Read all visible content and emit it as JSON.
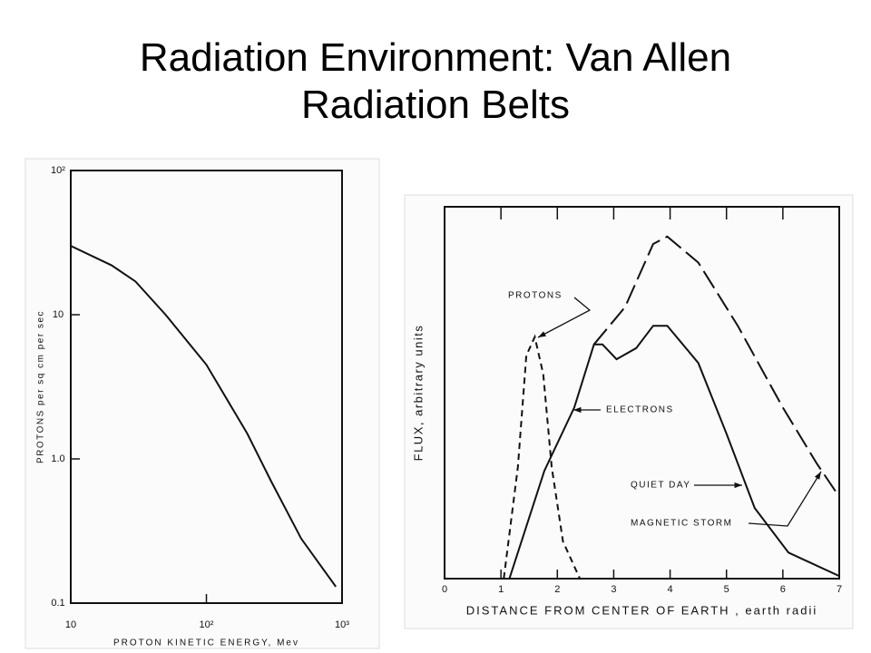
{
  "slide": {
    "title": "Radiation Environment: Van Allen Radiation Belts"
  },
  "chart_data": [
    {
      "type": "line",
      "xlabel": "PROTON KINETIC ENERGY, Mev",
      "ylabel": "PROTONS   per sq cm per sec",
      "xscale": "log",
      "yscale": "log",
      "xlim": [
        10,
        1000
      ],
      "ylim": [
        0.1,
        100
      ],
      "xticks": [
        10,
        {
          "value": 100,
          "label": "10²"
        },
        {
          "value": 1000,
          "label": "10³"
        }
      ],
      "yticks": [
        {
          "value": 100,
          "label": "10²"
        },
        10,
        {
          "value": 1,
          "label": "1.0"
        },
        0.1
      ],
      "series": [
        {
          "color": "#111111",
          "dash": "solid",
          "x": [
            10,
            20,
            30,
            50,
            100,
            200,
            300,
            500,
            900
          ],
          "values": [
            30,
            22,
            17,
            10,
            4.5,
            1.5,
            0.7,
            0.28,
            0.13
          ]
        }
      ]
    },
    {
      "type": "line",
      "xlabel": "DISTANCE FROM CENTER OF EARTH , earth radii",
      "ylabel": "FLUX, arbitrary units",
      "xlim": [
        0,
        7
      ],
      "ylim": [
        0,
        10
      ],
      "xticks": [
        0,
        1,
        2,
        3,
        4,
        5,
        6,
        7
      ],
      "annotations": [
        "PROTONS",
        "ELECTRONS",
        "QUIET DAY",
        "MAGNETIC STORM"
      ],
      "series": [
        {
          "color": "#111111",
          "dash": "short",
          "x": [
            1.05,
            1.3,
            1.45,
            1.6,
            1.75,
            1.9,
            2.1,
            2.4
          ],
          "values": [
            0,
            3,
            6,
            6.5,
            5.5,
            3,
            1,
            0
          ]
        },
        {
          "color": "#111111",
          "dash": "solid",
          "x": [
            1.15,
            1.77,
            2.3,
            2.65,
            2.8,
            3.05,
            3.4,
            3.7,
            3.95,
            4.5,
            5.0,
            5.5,
            6.1,
            7
          ],
          "values": [
            0,
            2.9,
            4.6,
            6.3,
            6.3,
            5.9,
            6.2,
            6.8,
            6.8,
            5.8,
            3.9,
            1.9,
            0.7,
            0.07
          ]
        },
        {
          "color": "#111111",
          "dash": "long",
          "x": [
            2.65,
            3.2,
            3.7,
            3.95,
            4.5,
            5.2,
            6.0,
            6.6,
            7
          ],
          "values": [
            6.3,
            7.3,
            9.0,
            9.2,
            8.5,
            6.8,
            4.6,
            3.1,
            2.2
          ]
        }
      ]
    }
  ]
}
